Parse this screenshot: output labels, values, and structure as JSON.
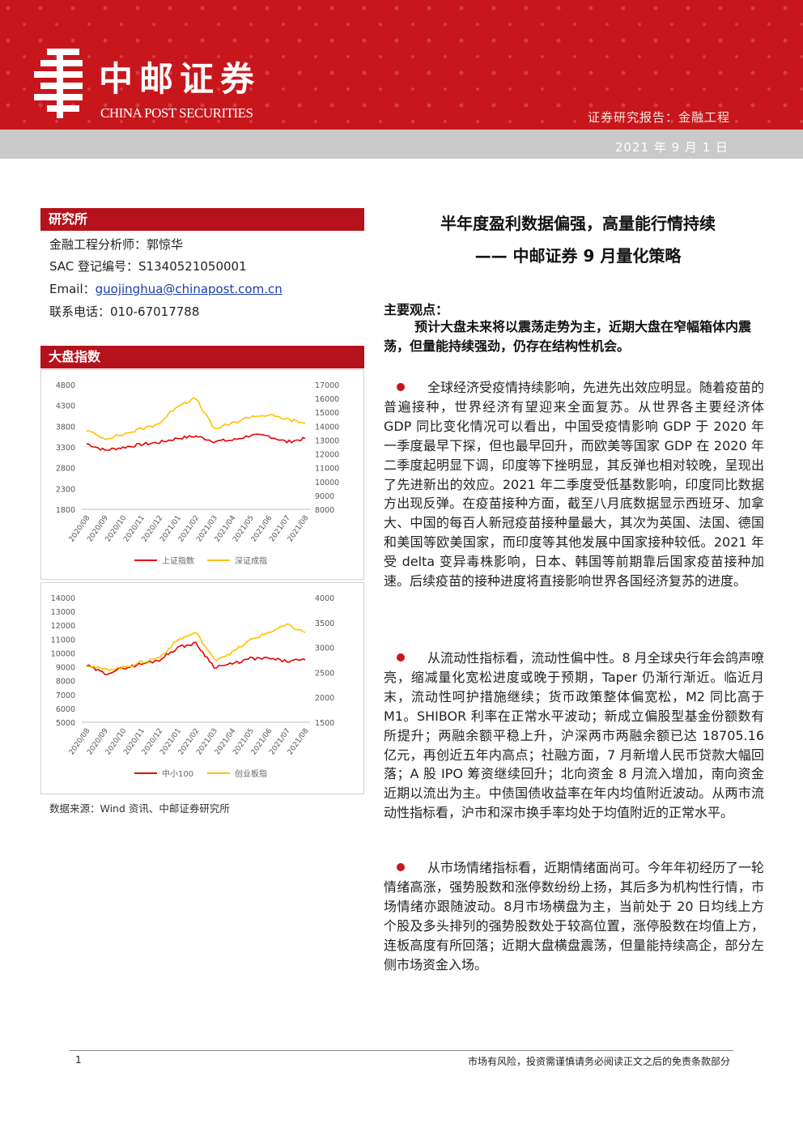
{
  "header": {
    "brand_cn": "中邮证券",
    "brand_en": "CHINA POST SECURITIES",
    "report_type": "证券研究报告：金融工程",
    "date": "2021 年 9 月 1 日"
  },
  "sidebar": {
    "institute": {
      "heading": "研究所",
      "analyst": "金融工程分析师：郭惊华",
      "sac": "SAC 登记编号：S1340521050001",
      "email_label": "Email：",
      "email": "guojinghua@chinapost.com.cn",
      "phone": "联系电话：010-67017788"
    },
    "index_heading": "大盘指数",
    "source": "数据来源：Wind 资讯、中邮证券研究所"
  },
  "title": {
    "line1": "半年度盈利数据偏强，高量能行情持续",
    "line2": "—— 中邮证券 9 月量化策略"
  },
  "main_view": {
    "label": "主要观点：",
    "text": "预计大盘未来将以震荡走势为主，近期大盘在窄幅箱体内震荡，但量能持续强劲，仍存在结构性机会。"
  },
  "paragraphs": [
    "全球经济受疫情持续影响，先进先出效应明显。随着疫苗的普遍接种，世界经济有望迎来全面复苏。从世界各主要经济体 GDP 同比变化情况可以看出，中国受疫情影响 GDP 于 2020 年一季度最早下探，但也最早回升，而欧美等国家 GDP 在 2020 年二季度起明显下调，印度等下挫明显，其反弹也相对较晚，呈现出了先进新出的效应。2021 年二季度受低基数影响，印度同比数据方出现反弹。在疫苗接种方面，截至八月底数据显示西班牙、加拿大、中国的每百人新冠疫苗接种量最大，其次为英国、法国、德国和美国等欧美国家，而印度等其他发展中国家接种较低。2021 年受 delta 变异毒株影响，日本、韩国等前期靠后国家疫苗接种加速。后续疫苗的接种进度将直接影响世界各国经济复苏的进度。",
    "从流动性指标看，流动性偏中性。8 月全球央行年会鸽声嘹亮，缩减量化宽松进度或晚于预期，Taper 仍渐行渐近。临近月末，流动性呵护措施继续；货币政策整体偏宽松，M2 同比高于 M1。SHIBOR 利率在正常水平波动；新成立偏股型基金份额数有所提升；两融余额平稳上升，沪深两市两融余额已达 18705.16 亿元，再创近五年内高点；社融方面，7 月新增人民币贷款大幅回落；A 股 IPO 筹资继续回升；北向资金 8 月流入增加，南向资金近期以流出为主。中债国债收益率在年内均值附近波动。从两市流动性指标看，沪市和深市换手率均处于均值附近的正常水平。",
    "从市场情绪指标看，近期情绪面尚可。今年年初经历了一轮情绪高涨，强势股数和涨停数纷纷上扬，其后多为机构性行情，市场情绪亦跟随波动。8月市场横盘为主，当前处于 20 日均线上方个股及多头排列的强势股数处于较高位置，涨停股数在均值上方，连板高度有所回落；近期大盘横盘震荡，但量能持续高企，部分左侧市场资金入场。"
  ],
  "footer": {
    "page": "1",
    "disclaimer": "市场有风险，投资需谨慎请务必阅读正文之后的免责条款部分"
  },
  "chart_data": [
    {
      "type": "line",
      "x": [
        "2020/08",
        "2020/09",
        "2020/10",
        "2020/11",
        "2020/12",
        "2021/01",
        "2021/02",
        "2021/03",
        "2021/04",
        "2021/05",
        "2021/06",
        "2021/07",
        "2021/08"
      ],
      "series": [
        {
          "name": "上证指数",
          "axis": "left",
          "color": "#e60000",
          "values": [
            3380,
            3220,
            3290,
            3360,
            3410,
            3510,
            3560,
            3440,
            3460,
            3580,
            3560,
            3420,
            3500
          ]
        },
        {
          "name": "深证成指",
          "axis": "right",
          "color": "#ffc000",
          "values": [
            13700,
            13100,
            13400,
            13800,
            14200,
            15500,
            16000,
            13800,
            14200,
            14700,
            14800,
            14500,
            14200
          ]
        }
      ],
      "y_left": {
        "min": 1800,
        "max": 4800,
        "ticks": [
          4800,
          4300,
          3800,
          3300,
          2800,
          2300,
          1800
        ]
      },
      "y_right": {
        "min": 8000,
        "max": 17000,
        "ticks": [
          17000,
          16000,
          15000,
          14000,
          13000,
          12000,
          11000,
          10000,
          9000,
          8000
        ]
      },
      "legend": "bottom",
      "grid": false
    },
    {
      "type": "line",
      "x": [
        "2020/08",
        "2020/09",
        "2020/10",
        "2020/11",
        "2020/12",
        "2021/01",
        "2021/02",
        "2021/03",
        "2021/04",
        "2021/05",
        "2021/06",
        "2021/07",
        "2021/08"
      ],
      "series": [
        {
          "name": "中小100",
          "axis": "left",
          "color": "#e60000",
          "values": [
            9100,
            8500,
            8900,
            9200,
            9500,
            10400,
            10700,
            9000,
            9200,
            9600,
            9600,
            9400,
            9500
          ]
        },
        {
          "name": "创业板指",
          "axis": "right",
          "color": "#ffc000",
          "values": [
            2650,
            2550,
            2600,
            2700,
            2800,
            3150,
            3300,
            2750,
            2900,
            3150,
            3300,
            3450,
            3300
          ]
        }
      ],
      "y_left": {
        "min": 5000,
        "max": 14000,
        "ticks": [
          14000,
          13000,
          12000,
          11000,
          10000,
          9000,
          8000,
          7000,
          6000,
          5000
        ]
      },
      "y_right": {
        "min": 1500,
        "max": 4000,
        "ticks": [
          4000,
          3500,
          3000,
          2500,
          2000,
          1500
        ]
      },
      "legend": "bottom",
      "grid": false
    }
  ]
}
